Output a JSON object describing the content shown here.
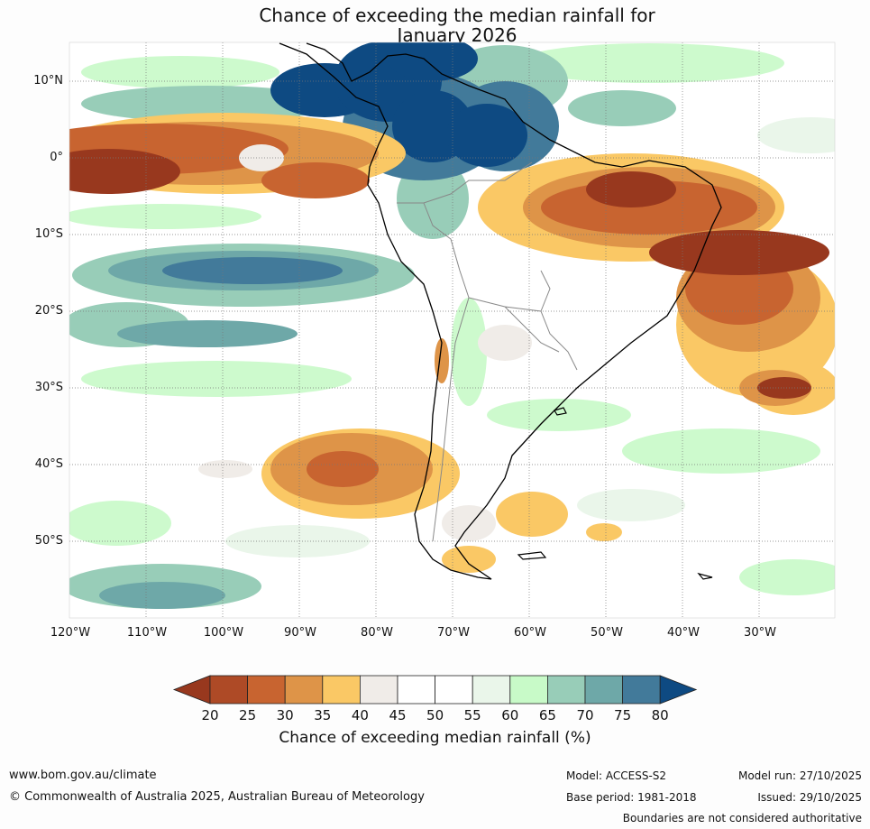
{
  "title_line1": "Chance of exceeding the median rainfall for",
  "title_line2": "January 2026",
  "lat_labels": [
    "10°N",
    "0°",
    "10°S",
    "20°S",
    "30°S",
    "40°S",
    "50°S"
  ],
  "lat_values": [
    10,
    0,
    -10,
    -20,
    -30,
    -40,
    -50
  ],
  "lon_labels": [
    "120°W",
    "110°W",
    "100°W",
    "90°W",
    "80°W",
    "70°W",
    "60°W",
    "50°W",
    "40°W",
    "30°W"
  ],
  "lon_values": [
    -120,
    -110,
    -100,
    -90,
    -80,
    -70,
    -60,
    -50,
    -40,
    -30
  ],
  "colorbar": {
    "ticks": [
      "20",
      "25",
      "30",
      "35",
      "40",
      "45",
      "50",
      "55",
      "60",
      "65",
      "70",
      "75",
      "80"
    ],
    "colors": [
      "#98381e",
      "#ae4a26",
      "#c86430",
      "#de9448",
      "#fac865",
      "#f0ece8",
      "#ffffff",
      "#ffffff",
      "#eaf6ea",
      "#c8fac8",
      "#98cdb8",
      "#6ea8a8",
      "#427a9a",
      "#0e4a82"
    ],
    "label": "Chance of exceeding median rainfall (%)"
  },
  "footer": {
    "website": "www.bom.gov.au/climate",
    "copyright": "© Commonwealth of Australia 2025, Australian Bureau of Meteorology",
    "model": "Model: ACCESS-S2",
    "base_period": "Base period: 1981-2018",
    "model_run": "Model run: 27/10/2025",
    "issued": "Issued: 29/10/2025",
    "disclaimer": "Boundaries are not considered authoritative"
  }
}
